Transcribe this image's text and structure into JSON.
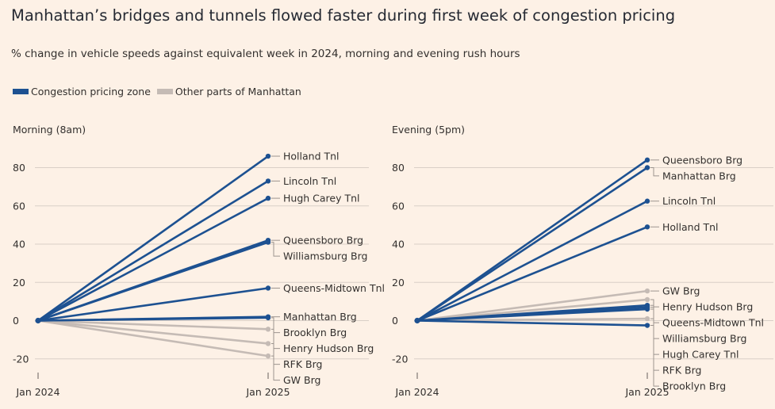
{
  "title": "Manhattan’s bridges and tunnels flowed faster during first week of congestion pricing",
  "subtitle": "% change in vehicle speeds against equivalent week in 2024, morning and evening rush hours",
  "legend": [
    {
      "label": "Congestion pricing zone",
      "color": "#1d5191"
    },
    {
      "label": "Other parts of Manhattan",
      "color": "#c5bbb5"
    }
  ],
  "colors": {
    "zone": "#1d5191",
    "other": "#c5bbb5",
    "grid": "#d9cfc7",
    "text": "#33302e"
  },
  "chart_data": [
    {
      "type": "line",
      "title": "Morning (8am)",
      "x": [
        "Jan 2024",
        "Jan 2025"
      ],
      "yticks": [
        -20,
        0,
        20,
        40,
        60,
        80
      ],
      "series": [
        {
          "name": "Holland Tnl",
          "group": "zone",
          "values": [
            0,
            86
          ]
        },
        {
          "name": "Lincoln Tnl",
          "group": "zone",
          "values": [
            0,
            73
          ]
        },
        {
          "name": "Hugh Carey Tnl",
          "group": "zone",
          "values": [
            0,
            64
          ]
        },
        {
          "name": "Queensboro Brg",
          "group": "zone",
          "values": [
            0,
            42
          ]
        },
        {
          "name": "Williamsburg Brg",
          "group": "zone",
          "values": [
            0,
            41
          ]
        },
        {
          "name": "Queens-Midtown Tnl",
          "group": "zone",
          "values": [
            0,
            17
          ]
        },
        {
          "name": "Manhattan Brg",
          "group": "zone",
          "values": [
            0,
            2
          ]
        },
        {
          "name": "Brooklyn Brg",
          "group": "zone",
          "values": [
            0,
            1.5
          ]
        },
        {
          "name": "Henry Hudson Brg",
          "group": "other",
          "values": [
            0,
            -4.5
          ]
        },
        {
          "name": "RFK Brg",
          "group": "other",
          "values": [
            0,
            -12
          ]
        },
        {
          "name": "GW Brg",
          "group": "other",
          "values": [
            0,
            -18.5
          ]
        }
      ]
    },
    {
      "type": "line",
      "title": "Evening (5pm)",
      "x": [
        "Jan 2024",
        "Jan 2025"
      ],
      "yticks": [
        -20,
        0,
        20,
        40,
        60,
        80
      ],
      "series": [
        {
          "name": "Queensboro Brg",
          "group": "zone",
          "values": [
            0,
            84
          ]
        },
        {
          "name": "Manhattan Brg",
          "group": "zone",
          "values": [
            0,
            80
          ]
        },
        {
          "name": "Lincoln Tnl",
          "group": "zone",
          "values": [
            0,
            62.5
          ]
        },
        {
          "name": "Holland Tnl",
          "group": "zone",
          "values": [
            0,
            49
          ]
        },
        {
          "name": "GW Brg",
          "group": "other",
          "values": [
            0,
            15.5
          ]
        },
        {
          "name": "Henry Hudson Brg",
          "group": "other",
          "values": [
            0,
            11
          ]
        },
        {
          "name": "Queens-Midtown Tnl",
          "group": "zone",
          "values": [
            0,
            8
          ]
        },
        {
          "name": "Hugh Carey Tnl",
          "group": "zone",
          "values": [
            0,
            6
          ]
        },
        {
          "name": "Williamsburg Brg",
          "group": "zone",
          "values": [
            0,
            7
          ]
        },
        {
          "name": "RFK Brg",
          "group": "other",
          "values": [
            0,
            1
          ]
        },
        {
          "name": "Brooklyn Brg",
          "group": "zone",
          "values": [
            0,
            -2.5
          ]
        }
      ]
    }
  ]
}
